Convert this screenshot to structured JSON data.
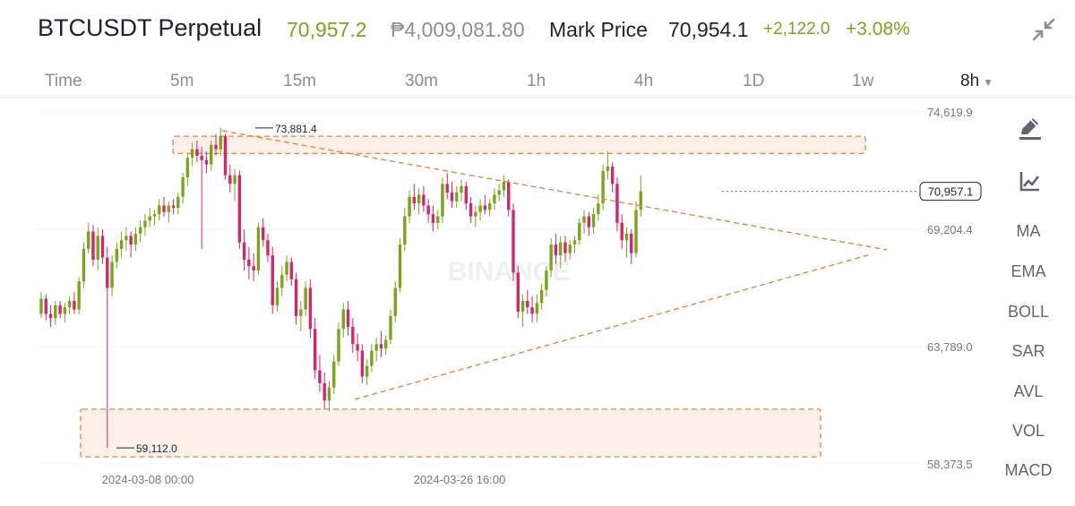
{
  "header": {
    "symbol": "BTCUSDT Perpetual",
    "last_price": "70,957.2",
    "fiat_price": "₱4,009,081.80",
    "mark_label": "Mark Price",
    "mark_price": "70,954.1",
    "change": "+2,122.0",
    "change_pct": "+3.08%"
  },
  "intervals": [
    "Time",
    "5m",
    "15m",
    "30m",
    "1h",
    "4h",
    "1D",
    "1w"
  ],
  "selected_interval": "8h",
  "price_axis": {
    "ticks": [
      "74,619.9",
      "69,204.4",
      "63,789.0",
      "58,373.5"
    ],
    "current_price": "70,957.1"
  },
  "time_axis": [
    "2024-03-08 00:00",
    "2024-03-26 16:00"
  ],
  "annotations": {
    "high": "73,881.4",
    "low": "59,112.0"
  },
  "watermark": "BINANCE",
  "indicators": [
    "MA",
    "EMA",
    "BOLL",
    "SAR",
    "AVL",
    "VOL",
    "MACD"
  ],
  "icons": {
    "collapse": "collapse-arrows-icon",
    "draw": "pencil-draw-icon",
    "chart_type": "line-chart-icon",
    "dropdown": "caret-down-icon"
  },
  "colors": {
    "up": "#7aa51a",
    "down": "#d6266a",
    "fiat": "#8b8f96",
    "drawing": "#e8863a",
    "zone_fill": "#fdf0e8",
    "watermark": "#eef0f2"
  },
  "chart_data": {
    "type": "candlestick",
    "timeframe": "8h",
    "yaxis_ticks": [
      74619.9,
      69204.4,
      63789.0,
      58373.5
    ],
    "ylim": [
      58373.5,
      74619.9
    ],
    "series": [
      {
        "values": [
          [
            65300,
            66300,
            65100,
            66000
          ],
          [
            66000,
            66200,
            65000,
            65300
          ],
          [
            65300,
            65700,
            64700,
            65100
          ],
          [
            65100,
            65900,
            64800,
            65700
          ],
          [
            65700,
            65900,
            65100,
            65300
          ],
          [
            65300,
            65800,
            64900,
            65600
          ],
          [
            65600,
            66100,
            65300,
            65900
          ],
          [
            65900,
            66300,
            65300,
            65500
          ],
          [
            65500,
            67000,
            65300,
            66800
          ],
          [
            66800,
            68600,
            66500,
            68300
          ],
          [
            68300,
            69500,
            68100,
            69100
          ],
          [
            69100,
            69400,
            67500,
            67800
          ],
          [
            67800,
            69300,
            67300,
            68900
          ],
          [
            68900,
            69200,
            67600,
            67900
          ],
          [
            67900,
            68400,
            59112,
            66500
          ],
          [
            66500,
            68000,
            66100,
            67700
          ],
          [
            67700,
            68600,
            67400,
            68300
          ],
          [
            68300,
            69100,
            67900,
            68700
          ],
          [
            68700,
            69300,
            68200,
            68900
          ],
          [
            68900,
            69100,
            67900,
            68500
          ],
          [
            68500,
            69300,
            68200,
            69000
          ],
          [
            69000,
            69600,
            68600,
            69300
          ],
          [
            69300,
            69900,
            68900,
            69600
          ],
          [
            69600,
            70200,
            69300,
            69800
          ],
          [
            69800,
            70100,
            69400,
            69900
          ],
          [
            69900,
            70600,
            69600,
            70300
          ],
          [
            70300,
            70700,
            69800,
            70000
          ],
          [
            70000,
            70500,
            69500,
            70300
          ],
          [
            70300,
            70600,
            69900,
            70200
          ],
          [
            70200,
            70900,
            69900,
            70700
          ],
          [
            70700,
            71800,
            70400,
            71600
          ],
          [
            71600,
            72700,
            71200,
            72500
          ],
          [
            72500,
            73200,
            72100,
            72900
          ],
          [
            72900,
            73300,
            72300,
            72600
          ],
          [
            72600,
            73000,
            68300,
            72400
          ],
          [
            72400,
            72800,
            71800,
            72200
          ],
          [
            72200,
            73300,
            71900,
            73100
          ],
          [
            73100,
            73600,
            72600,
            72900
          ],
          [
            72900,
            73881.4,
            72600,
            73500
          ],
          [
            73500,
            73600,
            71500,
            71700
          ],
          [
            71700,
            72200,
            70900,
            71300
          ],
          [
            71300,
            72000,
            70500,
            71700
          ],
          [
            71700,
            71900,
            68300,
            68600
          ],
          [
            68600,
            69200,
            67300,
            67800
          ],
          [
            67800,
            68400,
            66900,
            67500
          ],
          [
            67500,
            68100,
            66800,
            67300
          ],
          [
            67300,
            69500,
            67100,
            69300
          ],
          [
            69300,
            69700,
            68400,
            68700
          ],
          [
            68700,
            69000,
            67700,
            68000
          ],
          [
            68000,
            68400,
            65300,
            65700
          ],
          [
            65700,
            66800,
            65400,
            66500
          ],
          [
            66500,
            67500,
            66100,
            67100
          ],
          [
            67100,
            68000,
            66800,
            67700
          ],
          [
            67700,
            67900,
            66600,
            66900
          ],
          [
            66900,
            67200,
            64800,
            65200
          ],
          [
            65200,
            65900,
            64500,
            65500
          ],
          [
            65500,
            66800,
            65200,
            66500
          ],
          [
            66500,
            66900,
            64200,
            64600
          ],
          [
            64600,
            65100,
            62300,
            62700
          ],
          [
            62700,
            63400,
            61700,
            62100
          ],
          [
            62100,
            62600,
            60900,
            61300
          ],
          [
            61300,
            62200,
            60800,
            61900
          ],
          [
            61900,
            63400,
            61600,
            63100
          ],
          [
            63100,
            64900,
            62900,
            64600
          ],
          [
            64600,
            65800,
            64200,
            65500
          ],
          [
            65500,
            65900,
            64300,
            64700
          ],
          [
            64700,
            65100,
            63500,
            63900
          ],
          [
            63900,
            64400,
            63100,
            63600
          ],
          [
            63600,
            63900,
            62100,
            62400
          ],
          [
            62400,
            63200,
            62000,
            62900
          ],
          [
            62900,
            63900,
            62600,
            63600
          ],
          [
            63600,
            64200,
            63100,
            63900
          ],
          [
            63900,
            64500,
            63300,
            63700
          ],
          [
            63700,
            64300,
            63400,
            64100
          ],
          [
            64100,
            65500,
            63900,
            65200
          ],
          [
            65200,
            66800,
            64900,
            66500
          ],
          [
            66500,
            68800,
            66300,
            68500
          ],
          [
            68500,
            70200,
            68200,
            69800
          ],
          [
            69800,
            71000,
            69500,
            70700
          ],
          [
            70700,
            71300,
            70100,
            70400
          ],
          [
            70400,
            71100,
            69900,
            70800
          ],
          [
            70800,
            71200,
            70000,
            70300
          ],
          [
            70300,
            70600,
            69500,
            69900
          ],
          [
            69900,
            70300,
            69100,
            69500
          ],
          [
            69500,
            70100,
            69200,
            69800
          ],
          [
            69800,
            71600,
            69500,
            71300
          ],
          [
            71300,
            71800,
            70600,
            70900
          ],
          [
            70900,
            71400,
            70200,
            70500
          ],
          [
            70500,
            71200,
            70200,
            70900
          ],
          [
            70900,
            71500,
            70500,
            71200
          ],
          [
            71200,
            71400,
            70100,
            70400
          ],
          [
            70400,
            70700,
            69500,
            69800
          ],
          [
            69800,
            70300,
            69300,
            70000
          ],
          [
            70000,
            70600,
            69600,
            70300
          ],
          [
            70300,
            70800,
            69900,
            70100
          ],
          [
            70100,
            70600,
            69800,
            70400
          ],
          [
            70400,
            71100,
            70100,
            70800
          ],
          [
            70800,
            71300,
            70500,
            71000
          ],
          [
            71000,
            71700,
            70700,
            71400
          ],
          [
            71400,
            71500,
            69800,
            70100
          ],
          [
            70100,
            70400,
            66800,
            67200
          ],
          [
            67200,
            67500,
            65100,
            65400
          ],
          [
            65400,
            66200,
            64700,
            65900
          ],
          [
            65900,
            66400,
            65300,
            65600
          ],
          [
            65600,
            66100,
            64900,
            65300
          ],
          [
            65300,
            66200,
            64900,
            65800
          ],
          [
            65800,
            66700,
            65500,
            66400
          ],
          [
            66400,
            67500,
            66100,
            67300
          ],
          [
            67300,
            68800,
            67000,
            68500
          ],
          [
            68500,
            69000,
            67600,
            68000
          ],
          [
            68000,
            68900,
            67400,
            68600
          ],
          [
            68600,
            68900,
            67700,
            68100
          ],
          [
            68100,
            68700,
            67800,
            68500
          ],
          [
            68500,
            68900,
            68100,
            68700
          ],
          [
            68700,
            69700,
            68500,
            69500
          ],
          [
            69500,
            70100,
            69000,
            69800
          ],
          [
            69800,
            70000,
            68900,
            69300
          ],
          [
            69300,
            70200,
            69000,
            69900
          ],
          [
            69900,
            70800,
            69600,
            70400
          ],
          [
            70400,
            72200,
            70100,
            71900
          ],
          [
            71900,
            72800,
            71500,
            72100
          ],
          [
            72100,
            72300,
            70900,
            71300
          ],
          [
            71300,
            71600,
            69100,
            69500
          ],
          [
            69500,
            69900,
            68300,
            68700
          ],
          [
            68700,
            69300,
            67900,
            69000
          ],
          [
            69000,
            69200,
            67600,
            68100
          ],
          [
            68100,
            70500,
            67900,
            70100
          ],
          [
            70100,
            71700,
            69800,
            70954
          ]
        ]
      }
    ],
    "zones": [
      {
        "top": 73500,
        "bottom": 72700
      },
      {
        "top": 60900,
        "bottom": 58700
      }
    ],
    "trendlines": [
      {
        "from": {
          "i": 33,
          "price": 73400
        },
        "to": {
          "i": 146,
          "price": 67300
        }
      },
      {
        "from": {
          "i": 62,
          "price": 60900
        },
        "to": {
          "i": 146,
          "price": 66900
        }
      }
    ]
  }
}
